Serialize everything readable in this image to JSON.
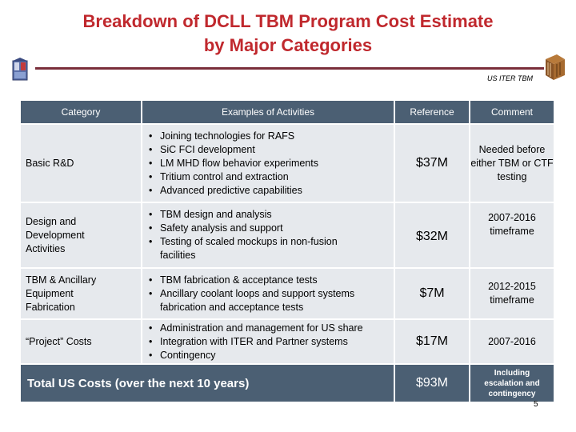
{
  "slide": {
    "title_line1": "Breakdown of DCLL TBM Program Cost Estimate",
    "title_line2": "by Major Categories",
    "subtag": "US ITER TBM",
    "page_number": "5"
  },
  "table": {
    "headers": {
      "category": "Category",
      "activities": "Examples of Activities",
      "reference": "Reference",
      "comment": "Comment"
    },
    "rows": [
      {
        "category": "Basic R&D",
        "activities": [
          "Joining technologies for RAFS",
          "SiC FCI development",
          "LM MHD flow behavior experiments",
          "Tritium control and extraction",
          "Advanced predictive capabilities"
        ],
        "reference": "$37M",
        "comment": "Needed before either TBM or CTF testing"
      },
      {
        "category": "Design and Development Activities",
        "activities": [
          "TBM design and analysis",
          "Safety analysis and support",
          "Testing of scaled mockups in non-fusion facilities"
        ],
        "reference": "$32M",
        "comment": "2007-2016 timeframe"
      },
      {
        "category": "TBM & Ancillary Equipment Fabrication",
        "activities": [
          "TBM fabrication & acceptance tests",
          "Ancillary coolant loops and support systems fabrication and acceptance tests"
        ],
        "reference": "$7M",
        "comment": "2012-2015 timeframe"
      },
      {
        "category": "“Project” Costs",
        "activities": [
          "Administration and management for US share",
          "Integration with ITER and Partner systems",
          "Contingency"
        ],
        "reference": "$17M",
        "comment": "2007-2016"
      }
    ],
    "total": {
      "label": "Total US Costs (over the next 10 years)",
      "reference": "$93M",
      "comment": "Including escalation and contingency"
    }
  },
  "colors": {
    "title": "#c0282d",
    "header_fill": "#4b5f73",
    "row_fill": "#e6e9ed",
    "rule": "#7a2e3a"
  },
  "icons": {
    "left_logo": "us-iter-logo-icon",
    "right_logo": "tbm-module-icon"
  }
}
